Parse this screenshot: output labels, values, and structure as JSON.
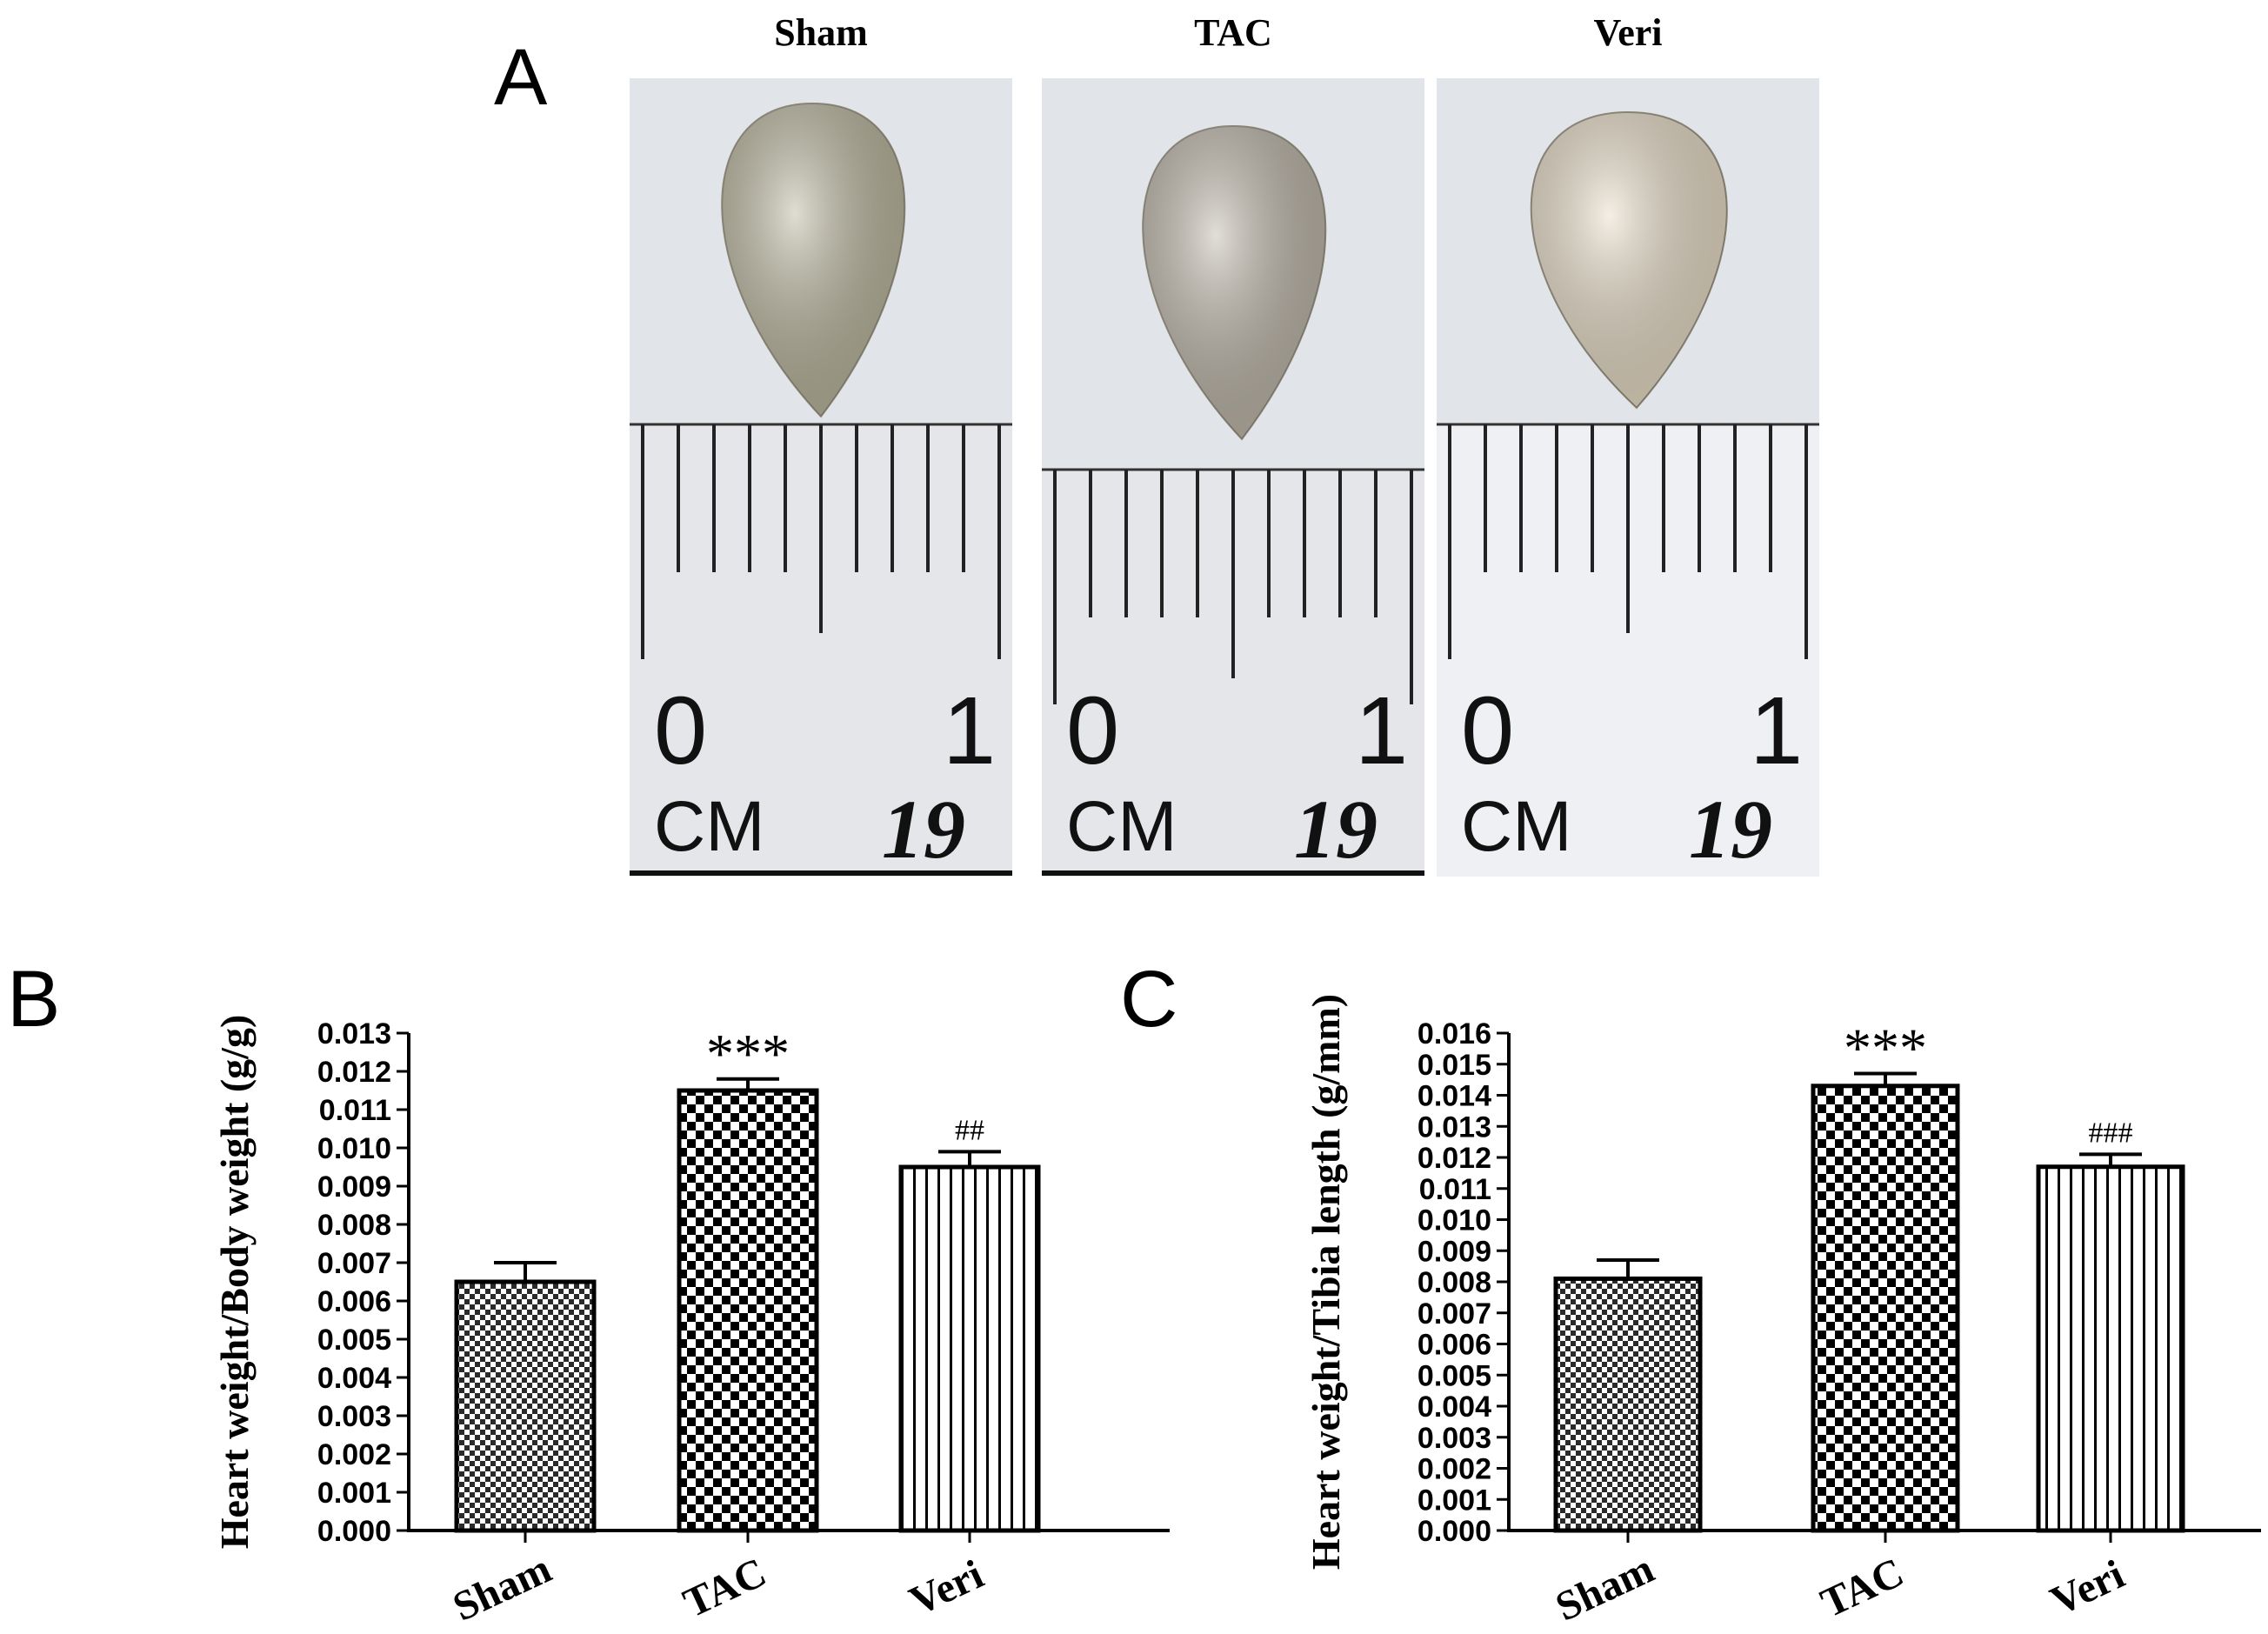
{
  "panels": {
    "a": {
      "letter": "A",
      "photos": [
        {
          "title": "Sham",
          "ruler_left": "0",
          "ruler_right": "1",
          "ruler_unit": "CM",
          "ruler_mark": "19",
          "heart_color": "#b9b59c"
        },
        {
          "title": "TAC",
          "ruler_left": "0",
          "ruler_right": "1",
          "ruler_unit": "CM",
          "ruler_mark": "19",
          "heart_color": "#bdb6a8"
        },
        {
          "title": "Veri",
          "ruler_left": "0",
          "ruler_right": "1",
          "ruler_unit": "CM",
          "ruler_mark": "19",
          "heart_color": "#e8dcc6"
        }
      ]
    },
    "b": {
      "letter": "B"
    },
    "c": {
      "letter": "C"
    }
  },
  "chart_data": [
    {
      "type": "bar",
      "panel": "B",
      "categories": [
        "Sham",
        "TAC",
        "Veri"
      ],
      "values": [
        0.0065,
        0.0115,
        0.0095
      ],
      "errors": [
        0.0005,
        0.0003,
        0.0004
      ],
      "significance": [
        "",
        "***",
        "##"
      ],
      "patterns": [
        "fine-checker",
        "checker",
        "vertical-stripes"
      ],
      "ylabel": "Heart weight/Body weight (g/g)",
      "ylim": [
        0,
        0.013
      ],
      "yticks": [
        "0.000",
        "0.001",
        "0.002",
        "0.003",
        "0.004",
        "0.005",
        "0.006",
        "0.007",
        "0.008",
        "0.009",
        "0.010",
        "0.011",
        "0.012",
        "0.013"
      ]
    },
    {
      "type": "bar",
      "panel": "C",
      "categories": [
        "Sham",
        "TAC",
        "Veri"
      ],
      "values": [
        0.0081,
        0.0143,
        0.0117
      ],
      "errors": [
        0.0006,
        0.0004,
        0.0004
      ],
      "significance": [
        "",
        "***",
        "###"
      ],
      "patterns": [
        "fine-checker",
        "checker",
        "vertical-stripes"
      ],
      "ylabel": "Heart weight/Tibia length (g/mm)",
      "ylim": [
        0,
        0.016
      ],
      "yticks": [
        "0.000",
        "0.001",
        "0.002",
        "0.003",
        "0.004",
        "0.005",
        "0.006",
        "0.007",
        "0.008",
        "0.009",
        "0.010",
        "0.011",
        "0.012",
        "0.013",
        "0.014",
        "0.015",
        "0.016"
      ]
    }
  ]
}
